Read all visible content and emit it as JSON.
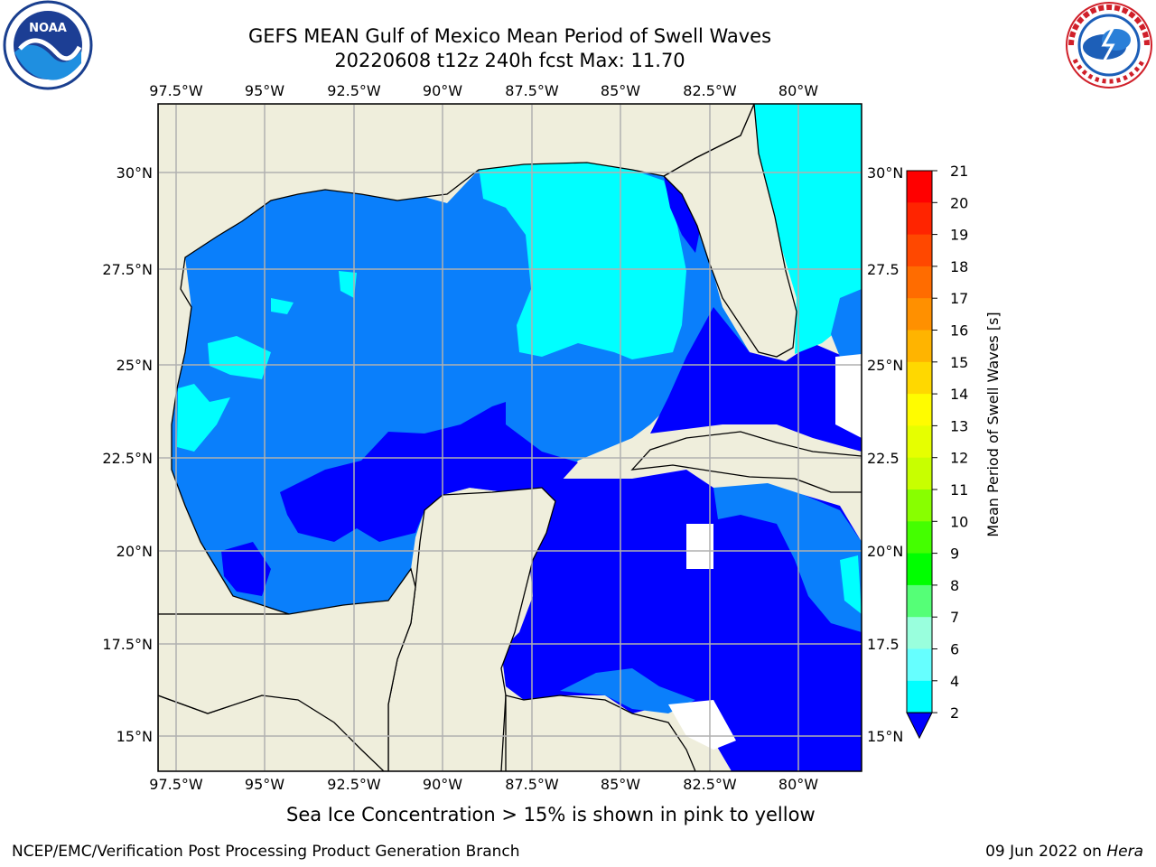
{
  "header": {
    "title_line1": "GEFS MEAN Gulf of Mexico Mean Period of Swell Waves",
    "title_line2": "20220608 t12z 240h fcst   Max: 11.70"
  },
  "logos": {
    "left": "noaa-logo",
    "right": "national-weather-service-logo"
  },
  "map": {
    "lon_ticks": [
      "97.5°W",
      "95°W",
      "92.5°W",
      "90°W",
      "87.5°W",
      "85°W",
      "82.5°W",
      "80°W"
    ],
    "lat_ticks_left": [
      "30°N",
      "27.5°N",
      "25°N",
      "22.5°N",
      "20°N",
      "17.5°N",
      "15°N"
    ],
    "lat_ticks_right": [
      "30°N",
      "27.5",
      "25°N",
      "22.5",
      "20°N",
      "17.5",
      "15°N"
    ],
    "extent": {
      "lon_min": -98,
      "lon_max": -78.2,
      "lat_min": 14,
      "lat_max": 31.8
    },
    "land_color": "#efeedc",
    "grid_color": "#b0b0b0"
  },
  "colorbar": {
    "label": "Mean Period of Swell Waves [s]",
    "ticks": [
      "21",
      "20",
      "19",
      "18",
      "17",
      "16",
      "15",
      "14",
      "13",
      "12",
      "11",
      "10",
      "9",
      "8",
      "7",
      "6",
      "4",
      "2"
    ],
    "colors": [
      "#ff0000",
      "#ff2400",
      "#ff4800",
      "#ff6c00",
      "#ff9000",
      "#ffb400",
      "#ffd800",
      "#fffc00",
      "#e6ff00",
      "#c8ff00",
      "#88ff00",
      "#44ff00",
      "#00ff00",
      "#55ff77",
      "#99ffdd",
      "#66ffff",
      "#00ffff",
      "#0080ff"
    ],
    "extend_color": "#0000ff"
  },
  "note": "Sea Ice Concentration > 15% is shown in pink to yellow",
  "footer": {
    "left": "NCEP/EMC/Verification Post Processing Product Generation Branch",
    "date": "09 Jun 2022 on ",
    "machine": "Hera"
  }
}
